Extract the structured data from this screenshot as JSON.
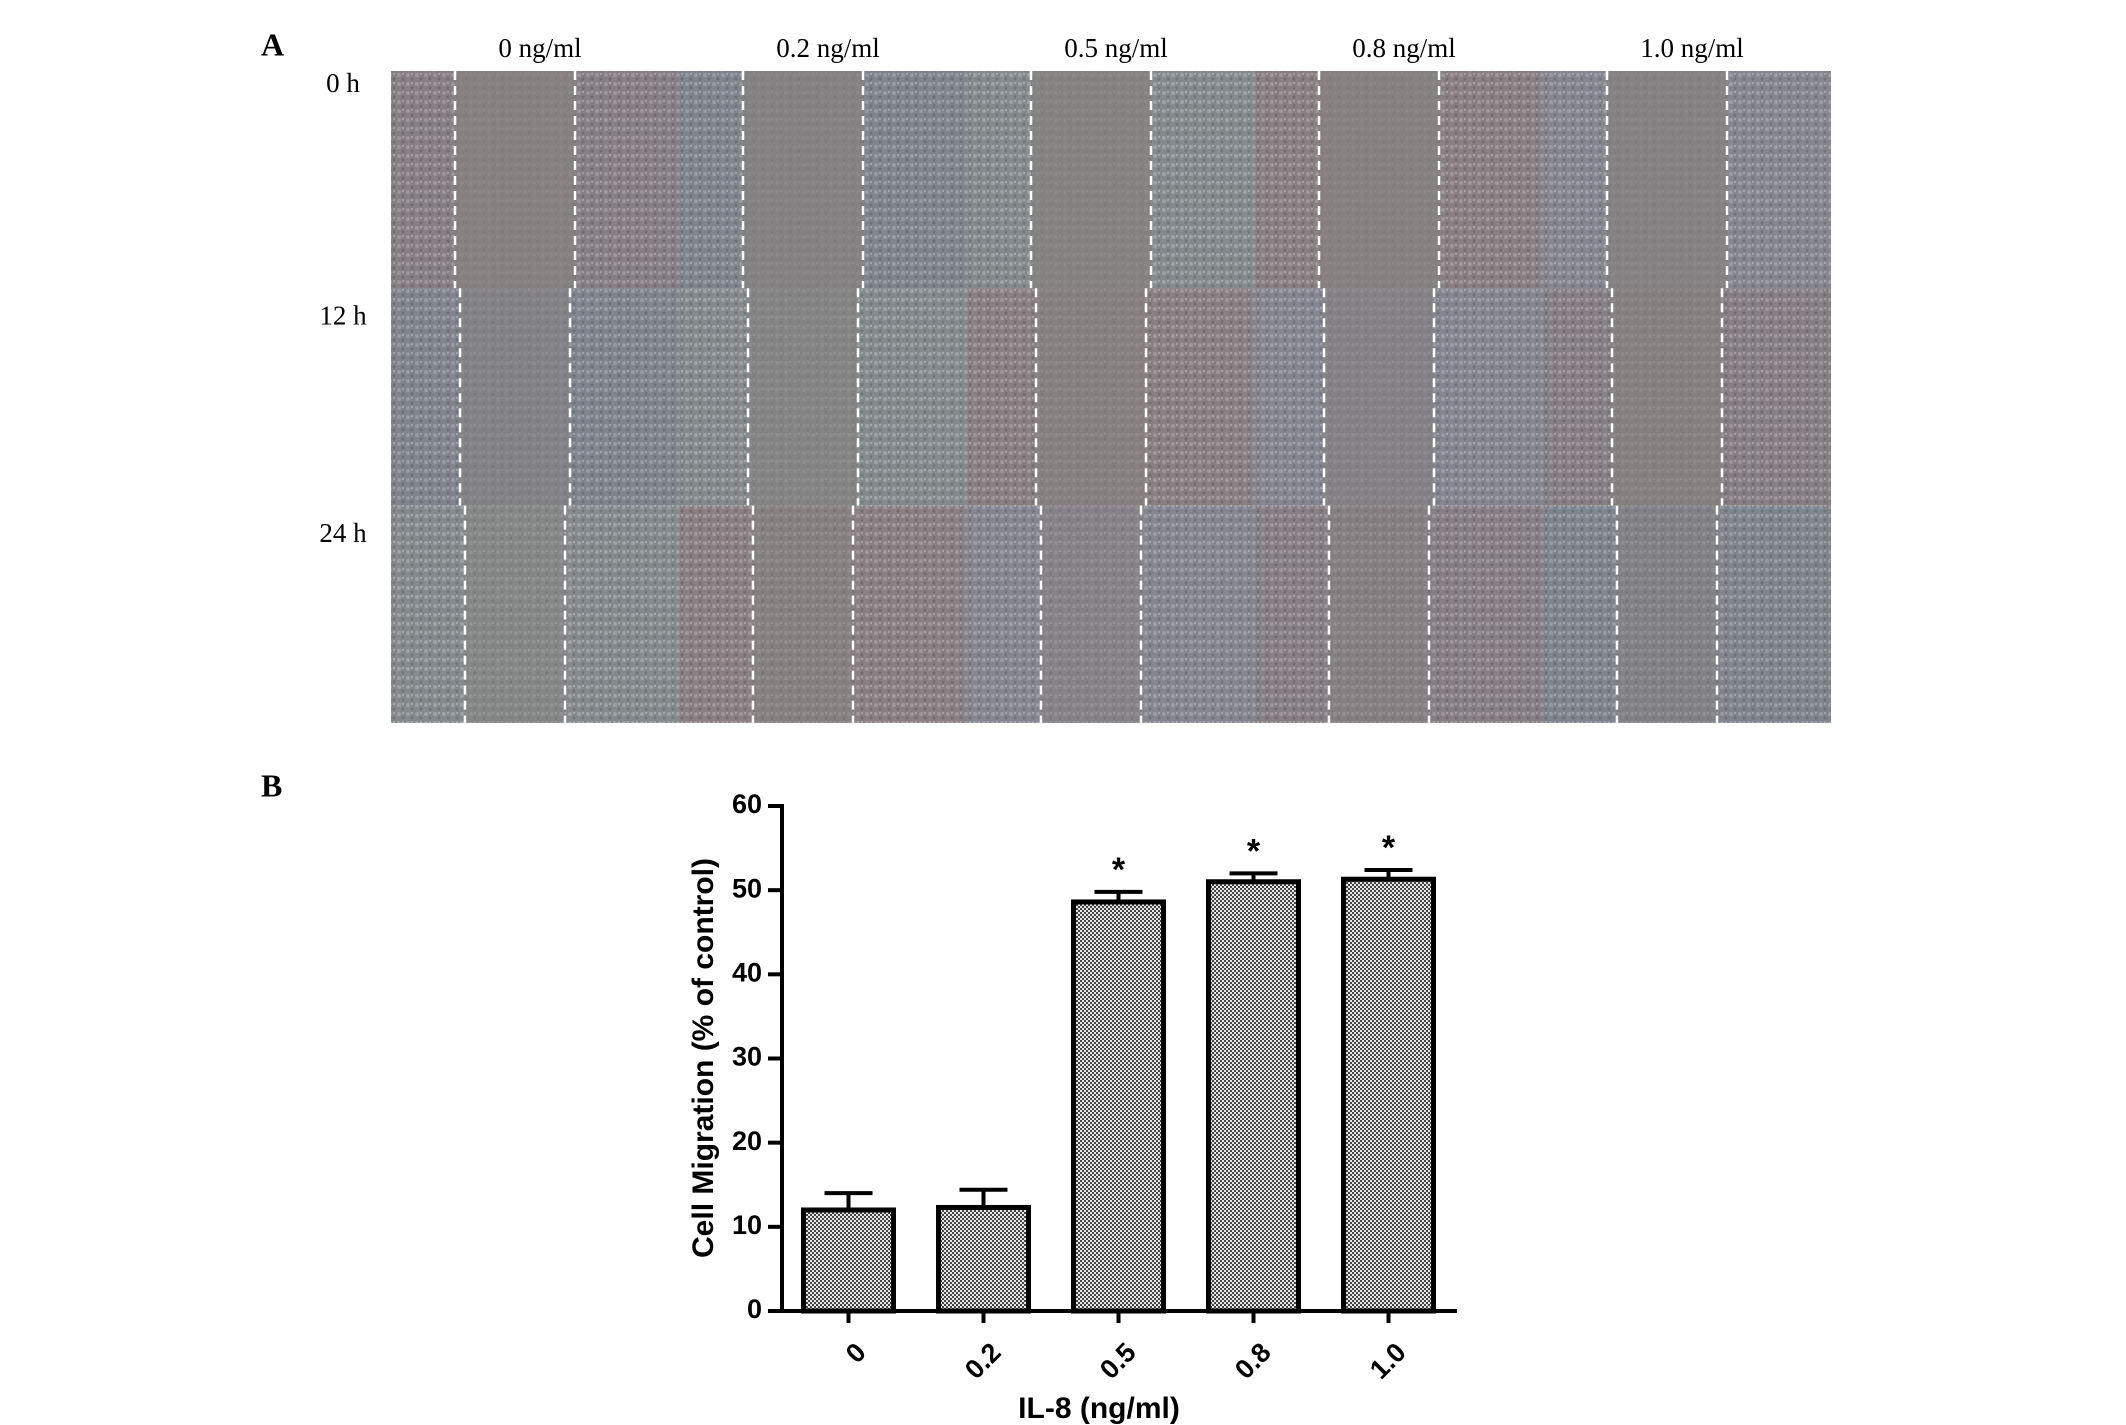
{
  "panel_a": {
    "label": "A",
    "columns": [
      "0 ng/ml",
      "0.2 ng/ml",
      "0.5 ng/ml",
      "0.8 ng/ml",
      "1.0 ng/ml"
    ],
    "rows": [
      "0 h",
      "12 h",
      "24 h"
    ]
  },
  "panel_b": {
    "label": "B"
  },
  "chart_data": {
    "type": "bar",
    "categories": [
      "0",
      "0.2",
      "0.5",
      "0.8",
      "1.0"
    ],
    "values": [
      12,
      12.3,
      48.6,
      51,
      51.3
    ],
    "errors": [
      2,
      2.1,
      1.2,
      1,
      1.1
    ],
    "significance": [
      null,
      null,
      "*",
      "*",
      "*"
    ],
    "xlabel": "IL-8 (ng/ml)",
    "ylabel": "Cell Migration (% of control)",
    "ylim": [
      0,
      60
    ],
    "yticks": [
      0,
      10,
      20,
      30,
      40,
      50,
      60
    ],
    "color": "#8a8a8a"
  }
}
